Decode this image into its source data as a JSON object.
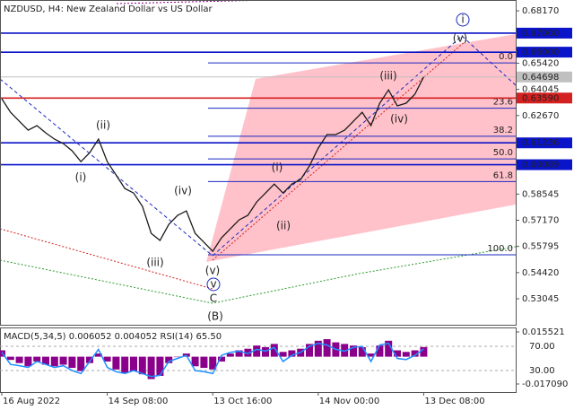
{
  "chart_data": [
    {
      "type": "line",
      "title": "NZDUSD, H4:  New Zealand Dollar vs US Dollar",
      "categories": [
        "16 Aug 2022",
        null,
        null,
        null,
        null,
        null,
        null,
        null,
        null,
        null,
        null,
        null,
        "14 Sep 08:00",
        null,
        null,
        null,
        null,
        null,
        null,
        null,
        null,
        null,
        null,
        null,
        "13 Oct 16:00",
        null,
        null,
        null,
        null,
        null,
        null,
        null,
        null,
        null,
        null,
        null,
        "14 Nov 00:00",
        null,
        null,
        null,
        null,
        null,
        null,
        null,
        null,
        null,
        null,
        null,
        "13 Dec 08:00"
      ],
      "values": [
        0.6355,
        0.6284,
        0.6237,
        0.619,
        0.6214,
        0.6176,
        0.6143,
        0.612,
        0.6082,
        0.6025,
        0.6072,
        0.6143,
        0.6025,
        0.5955,
        0.5884,
        0.586,
        0.579,
        0.5648,
        0.5611,
        0.5695,
        0.5743,
        0.5766,
        0.5648,
        0.5601,
        0.5554,
        0.5625,
        0.5672,
        0.5719,
        0.5743,
        0.5813,
        0.586,
        0.5907,
        0.586,
        0.5907,
        0.5931,
        0.6002,
        0.6096,
        0.6167,
        0.6167,
        0.619,
        0.6237,
        0.6284,
        0.6214,
        0.6332,
        0.6402,
        0.6318,
        0.6332,
        0.6379,
        0.647
      ],
      "color": "#1a1a1a",
      "ylim": [
        0.5168,
        0.6874
      ],
      "yticks": [
        {
          "value": 0.6817,
          "label": "0.68170"
        },
        {
          "value": 0.6542,
          "label": "0.65420"
        },
        {
          "value": 0.64045,
          "label": "0.64045"
        },
        {
          "value": 0.6267,
          "label": "0.62670"
        },
        {
          "value": 0.58545,
          "label": "0.58545"
        },
        {
          "value": 0.5717,
          "label": "0.57170"
        },
        {
          "value": 0.55795,
          "label": "0.55795"
        },
        {
          "value": 0.5442,
          "label": "0.54420"
        },
        {
          "value": 0.53045,
          "label": "0.53045"
        }
      ],
      "levels": [
        {
          "value": 0.67,
          "label": "0.67000",
          "color": "#0a14c8"
        },
        {
          "value": 0.66,
          "label": "0.66000",
          "color": "#0a14c8"
        },
        {
          "value": 0.6359,
          "label": "0.63590",
          "color": "#d42020"
        },
        {
          "value": 0.61236,
          "label": "0.61236",
          "color": "#0a14c8"
        },
        {
          "value": 0.60089,
          "label": "0.60089",
          "color": "#0a14c8"
        }
      ],
      "price": {
        "value": 0.64698,
        "label": "0.64698",
        "color": "#c0c0c0"
      },
      "fibonacci": {
        "color": "#1a2ac0",
        "levels": [
          {
            "value": 0.65437,
            "label": "0.0"
          },
          {
            "value": 0.63057,
            "label": "23.6"
          },
          {
            "value": 0.61585,
            "label": "38.2"
          },
          {
            "value": 0.60395,
            "label": "50.0"
          },
          {
            "value": 0.59205,
            "label": "61.8"
          },
          {
            "value": 0.55353,
            "label": "100.0"
          }
        ]
      },
      "annotations": [
        {
          "text": "(i)",
          "color": "#d42020"
        },
        {
          "text": "(ii)",
          "color": "#d42020"
        },
        {
          "text": "(iii)",
          "color": "#d42020"
        },
        {
          "text": "(iv)",
          "color": "#d42020"
        },
        {
          "text": "(v)",
          "color": "#d42020"
        },
        {
          "text": "v",
          "color": "#1a2ac0"
        },
        {
          "text": "C",
          "color": "#d42020"
        },
        {
          "text": "(B)",
          "color": "#2a9a2a"
        },
        {
          "text": "(i)",
          "color": "#d42020"
        },
        {
          "text": "(ii)",
          "color": "#d42020"
        },
        {
          "text": "(iii)",
          "color": "#d42020"
        },
        {
          "text": "(iv)",
          "color": "#d42020"
        },
        {
          "text": "(v)",
          "color": "#d42020"
        },
        {
          "text": "i",
          "color": "#1a2ac0"
        }
      ]
    },
    {
      "type": "bar",
      "title": "MACD(5,34,5) 0.006052 0.004052 RSI(14) 65.50",
      "series": [
        {
          "color": "#8b008b",
          "values": [
            0.004,
            -0.002,
            -0.004,
            -0.006,
            -0.003,
            -0.005,
            -0.006,
            -0.005,
            -0.007,
            -0.009,
            -0.004,
            0.002,
            -0.003,
            -0.008,
            -0.01,
            -0.009,
            -0.011,
            -0.014,
            -0.012,
            -0.004,
            0.0,
            0.002,
            -0.006,
            -0.007,
            -0.008,
            -0.003,
            0.002,
            0.004,
            0.005,
            0.007,
            0.006,
            0.008,
            0.003,
            0.004,
            0.005,
            0.008,
            0.01,
            0.011,
            0.009,
            0.008,
            0.007,
            0.006,
            0.002,
            0.007,
            0.01,
            0.004,
            0.003,
            0.004,
            0.006052
          ]
        },
        {
          "color": "#1e90ff",
          "axis": "y2",
          "values": [
            60,
            40,
            38,
            35,
            45,
            40,
            35,
            38,
            30,
            25,
            45,
            65,
            35,
            28,
            25,
            30,
            25,
            20,
            22,
            45,
            50,
            55,
            30,
            28,
            25,
            55,
            60,
            62,
            58,
            65,
            62,
            68,
            45,
            55,
            60,
            70,
            75,
            72,
            65,
            62,
            68,
            70,
            45,
            72,
            75,
            50,
            48,
            55,
            65.5
          ]
        }
      ],
      "ylim": [
        -0.02215,
        0.01833
      ],
      "yticks": [
        0.015521,
        {
          "value": -0.01709,
          "label": "-0.017090"
        }
      ],
      "y2lim": [
        -5.6,
        101.1
      ],
      "y2ticks": [
        {
          "value": 70,
          "label": "70.00"
        },
        {
          "value": 30,
          "label": "30.00"
        }
      ]
    }
  ]
}
